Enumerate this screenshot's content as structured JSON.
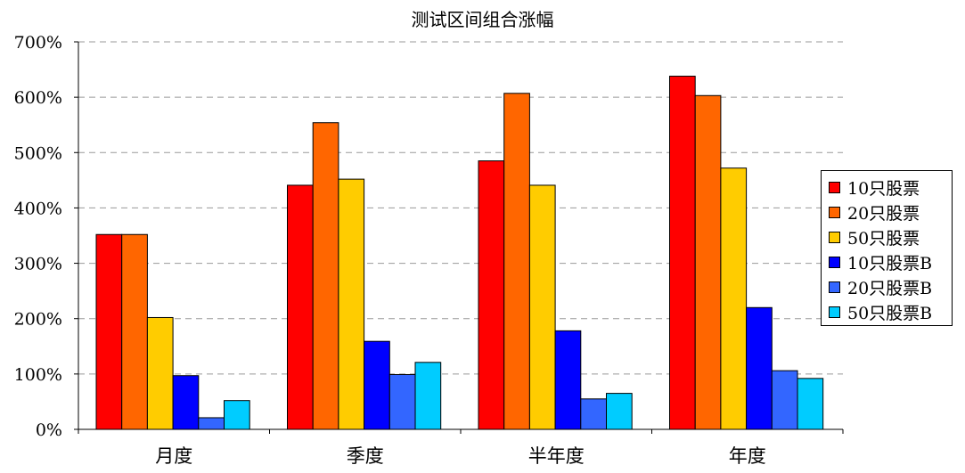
{
  "chart_data": {
    "type": "bar",
    "title": "测试区间组合涨幅",
    "categories": [
      "月度",
      "季度",
      "半年度",
      "年度"
    ],
    "series": [
      {
        "name": "10只股票",
        "color": "#ff0000",
        "values": [
          352,
          441,
          485,
          638
        ]
      },
      {
        "name": "20只股票",
        "color": "#ff6600",
        "values": [
          352,
          554,
          607,
          603
        ]
      },
      {
        "name": "50只股票",
        "color": "#ffcc00",
        "values": [
          202,
          452,
          441,
          472
        ]
      },
      {
        "name": "10只股票B",
        "color": "#0000ff",
        "values": [
          97,
          159,
          178,
          220
        ]
      },
      {
        "name": "20只股票B",
        "color": "#3366ff",
        "values": [
          21,
          99,
          55,
          106
        ]
      },
      {
        "name": "50只股票B",
        "color": "#00ccff",
        "values": [
          52,
          121,
          65,
          92
        ]
      }
    ],
    "ylim": [
      0,
      700
    ],
    "yticks": [
      "0%",
      "100%",
      "200%",
      "300%",
      "400%",
      "500%",
      "600%",
      "700%"
    ],
    "ytick_values": [
      0,
      100,
      200,
      300,
      400,
      500,
      600,
      700
    ],
    "grid": "horizontal dashed",
    "legend_position": "right"
  }
}
